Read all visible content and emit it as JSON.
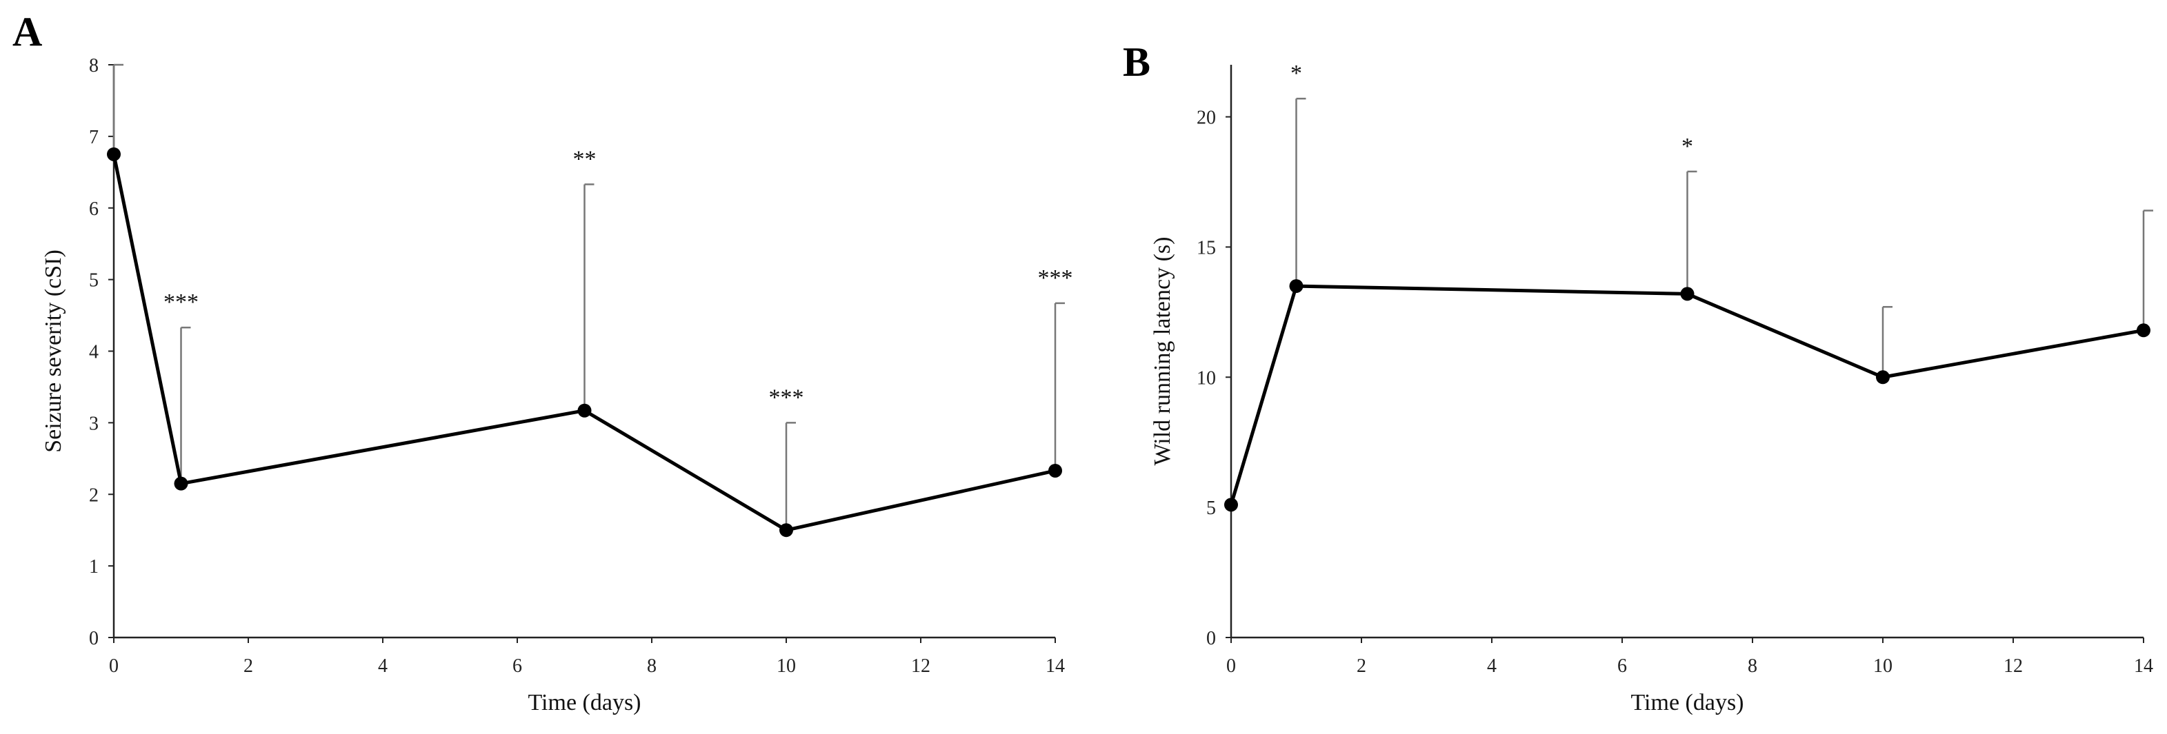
{
  "chart_data": [
    {
      "type": "line",
      "panel_label": "A",
      "xlabel": "Time (days)",
      "ylabel": "Seizure severity (cSI)",
      "xlim": [
        0,
        14
      ],
      "ylim": [
        0,
        8
      ],
      "x_ticks": [
        0,
        2,
        4,
        6,
        8,
        10,
        12,
        14
      ],
      "y_ticks": [
        0,
        1,
        2,
        3,
        4,
        5,
        6,
        7,
        8
      ],
      "series": [
        {
          "name": "Seizure severity",
          "x": [
            0,
            1,
            7,
            10,
            14
          ],
          "y": [
            6.75,
            2.15,
            3.17,
            1.5,
            2.33
          ],
          "error_upper": [
            8.0,
            4.33,
            6.33,
            3.0,
            4.67
          ]
        }
      ],
      "annotations": [
        {
          "x": 1,
          "text": "***"
        },
        {
          "x": 7,
          "text": "**"
        },
        {
          "x": 10,
          "text": "***"
        },
        {
          "x": 14,
          "text": "***"
        }
      ]
    },
    {
      "type": "line",
      "panel_label": "B",
      "xlabel": "Time (days)",
      "ylabel": "Wild running latency (s)",
      "xlim": [
        0,
        14
      ],
      "ylim": [
        0,
        22
      ],
      "x_ticks": [
        0,
        2,
        4,
        6,
        8,
        10,
        12,
        14
      ],
      "y_ticks": [
        0,
        5,
        10,
        15,
        20
      ],
      "series": [
        {
          "name": "Wild running latency",
          "x": [
            0,
            1,
            7,
            10,
            14
          ],
          "y": [
            5.1,
            13.5,
            13.2,
            10.0,
            11.8
          ],
          "error_upper": [
            5.1,
            20.7,
            17.9,
            12.7,
            16.4
          ]
        }
      ],
      "annotations": [
        {
          "x": 1,
          "text": "*"
        },
        {
          "x": 7,
          "text": "*"
        }
      ]
    }
  ]
}
